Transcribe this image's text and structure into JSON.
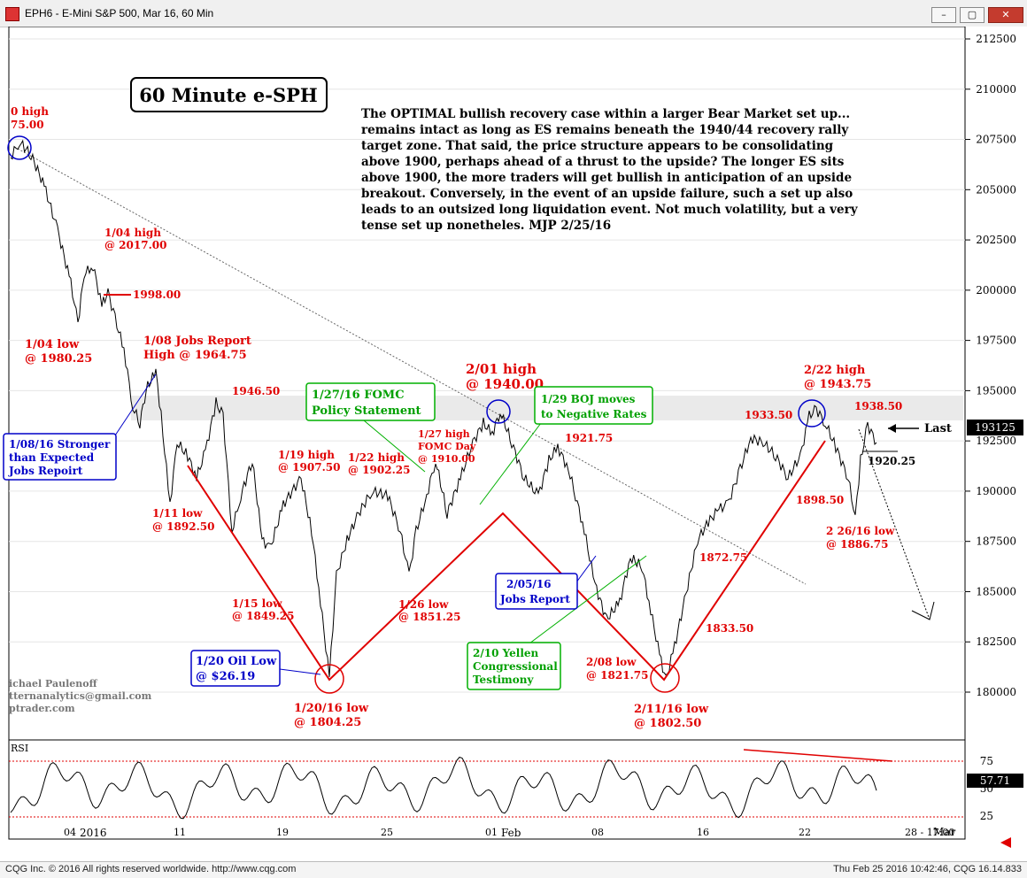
{
  "window": {
    "title": "EPH6 - E-Mini S&P 500, Mar 16, 60 Min",
    "min_glyph": "–",
    "max_glyph": "▢",
    "close_glyph": "✕",
    "icon": "cqg-app-icon"
  },
  "chart_title": "60 Minute e-SPH",
  "commentary": [
    "The OPTIMAL bullish recovery case within a larger Bear Market set up...",
    "remains intact as long as ES remains beneath the 1940/44 recovery rally",
    "target zone. That said, the price structure appears to be consolidating",
    "above 1900, perhaps ahead of a thrust to the upside? The longer ES sits",
    "above 1900, the more traders will get bullish in anticipation of an upside",
    "breakout. Conversely, in the event of an upside failure, such a set up also",
    "leads to an outsized long liquidation event. Not much volatility, but a very",
    "tense set up nonetheles.  MJP 2/25/16"
  ],
  "price_axis": {
    "ticks": [
      "212500",
      "210000",
      "207500",
      "205000",
      "202500",
      "200000",
      "197500",
      "195000",
      "192500",
      "190000",
      "187500",
      "185000",
      "182500",
      "180000"
    ],
    "last_price": "193125",
    "last_label": "Last"
  },
  "rsi_axis": {
    "label": "RSI",
    "ticks": [
      "75",
      "50",
      "25"
    ],
    "last_value": "57.71"
  },
  "time_axis": {
    "labels": [
      "04",
      "2016",
      "11",
      "19",
      "25",
      "01",
      "Feb",
      "08",
      "16",
      "22",
      "28 - 17:00",
      "Mar"
    ]
  },
  "annotations": {
    "dec_high": [
      "0 high",
      "75.00"
    ],
    "jan04_high": [
      "1/04 high",
      "@ 2017.00"
    ],
    "level_1998": "1998.00",
    "jan04_low": [
      "1/04 low",
      "@ 1980.25"
    ],
    "jan08_jobs": [
      "1/08 Jobs Report",
      "High @ 1964.75"
    ],
    "level_1946": "1946.50",
    "jan08_box": [
      "1/08/16 Stronger",
      "than Expected",
      "Jobs Repoirt"
    ],
    "jan11_low": [
      "1/11 low",
      "@ 1892.50"
    ],
    "jan15_low": [
      "1/15 low",
      "@ 1849.25"
    ],
    "jan19_high": [
      "1/19 high",
      "@ 1907.50"
    ],
    "jan20_box": [
      "1/20 Oil Low",
      "@ $26.19"
    ],
    "jan20_low": [
      "1/20/16 low",
      "@ 1804.25"
    ],
    "jan22_high": [
      "1/22 high",
      "@ 1902.25"
    ],
    "jan26_low": [
      "1/26 low",
      "@ 1851.25"
    ],
    "fomc_box": [
      "1/27/16 FOMC",
      "Policy Statement"
    ],
    "jan27_high": [
      "1/27 high",
      "FOMC Day",
      "@ 1910.00"
    ],
    "feb01_high": [
      "2/01 high",
      "@ 1940.00"
    ],
    "boj_box": [
      "1/29 BOJ moves",
      "to Negative Rates"
    ],
    "level_1921": "1921.75",
    "feb05_box": [
      "2/05/16",
      "Jobs Report"
    ],
    "feb08_low": [
      "2/08 low",
      "@ 1821.75"
    ],
    "yellen_box": [
      "2/10 Yellen",
      "Congressional",
      "Testimony"
    ],
    "feb11_low": [
      "2/11/16 low",
      "@ 1802.50"
    ],
    "level_1872": "1872.75",
    "level_1833": "1833.50",
    "level_1933": "1933.50",
    "level_1898": "1898.50",
    "feb22_high": [
      "2/22 high",
      "@ 1943.75"
    ],
    "level_1938": "1938.50",
    "level_1920": "1920.25",
    "feb26_low": [
      "2 26/16 low",
      "@ 1886.75"
    ],
    "signature": [
      "ichael Paulenoff",
      "tternanalytics@gmail.com",
      "ptrader.com"
    ]
  },
  "colors": {
    "red": "#e00000",
    "blue": "#0000c8",
    "green": "#00b000",
    "price": "#000000",
    "grid": "#c0c0c0"
  },
  "footer": {
    "left": "CQG Inc. © 2016 All rights reserved worldwide. http://www.cqg.com",
    "right": "Thu Feb 25 2016 10:42:46, CQG 16.14.833"
  }
}
